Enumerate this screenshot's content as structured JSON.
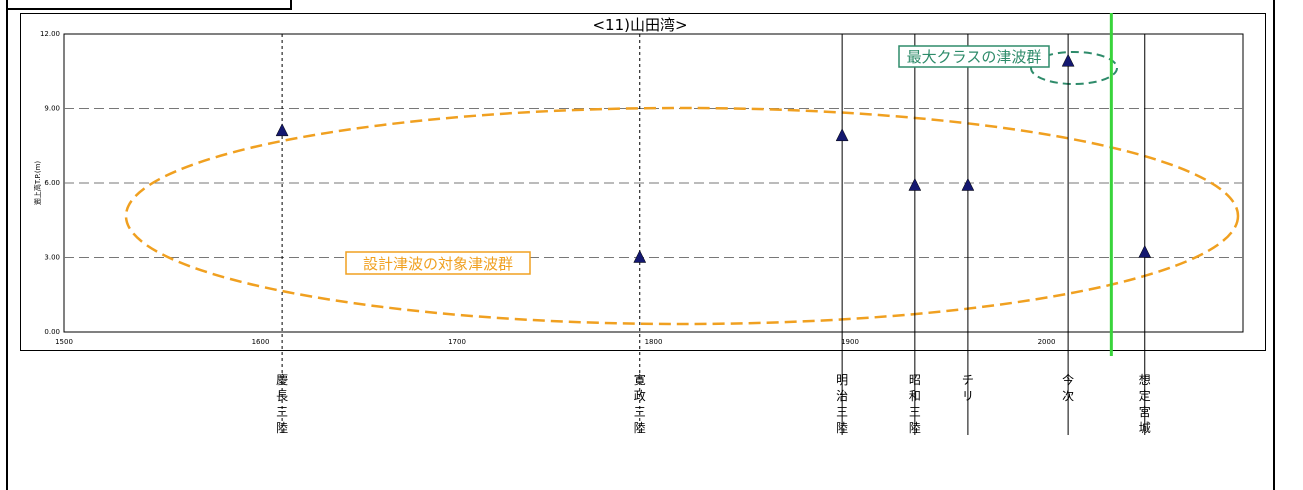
{
  "chart_data": {
    "type": "scatter",
    "title": "<11)山田湾>",
    "ylabel": "遡上高T.P.(m)",
    "xlabel": "",
    "xlim": [
      1500,
      2100
    ],
    "ylim": [
      0,
      12
    ],
    "x_ticks": [
      "1500",
      "1600",
      "1700",
      "1800",
      "1900",
      "2000"
    ],
    "y_ticks": [
      "0.00",
      "3.00",
      "6.00",
      "9.00",
      "12.00"
    ],
    "grid": true,
    "points": [
      {
        "x": 1611,
        "y": 8.1,
        "label": "慶長三陸",
        "line_style": "dashed"
      },
      {
        "x": 1793,
        "y": 3.0,
        "label": "寛政三陸",
        "line_style": "dashed"
      },
      {
        "x": 1896,
        "y": 7.9,
        "label": "明治三陸",
        "line_style": "solid"
      },
      {
        "x": 1933,
        "y": 5.9,
        "label": "昭和三陸",
        "line_style": "solid"
      },
      {
        "x": 1960,
        "y": 5.9,
        "label": "チリ",
        "line_style": "solid"
      },
      {
        "x": 2011,
        "y": 10.9,
        "label": "今次",
        "line_style": "solid"
      },
      {
        "x": 2050,
        "y": 3.2,
        "label": "想定宮城",
        "line_style": "solid"
      }
    ],
    "divider_x": 2033,
    "annotations": [
      {
        "text": "設計津波の対象津波群",
        "color": "#f0a020"
      },
      {
        "text": "最大クラスの津波群",
        "color": "#2e8b6a"
      }
    ]
  }
}
